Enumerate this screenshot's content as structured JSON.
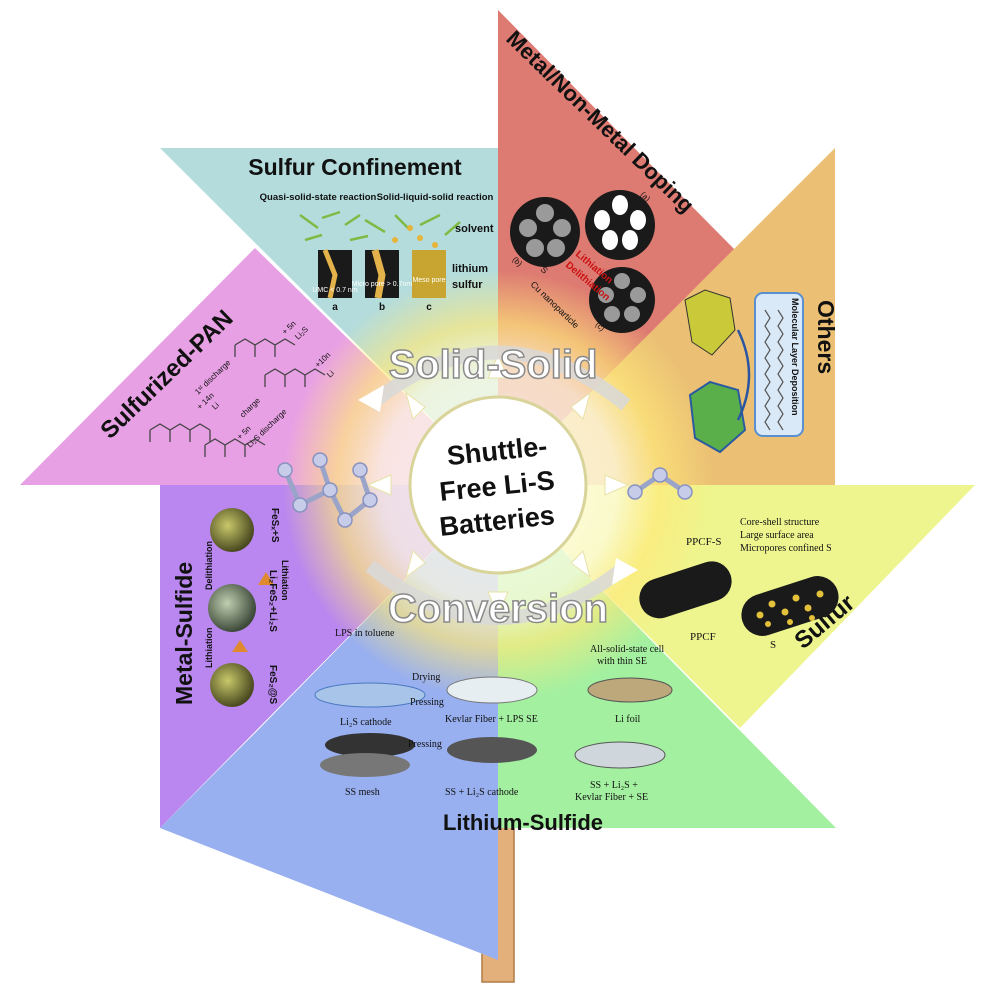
{
  "center": {
    "line1": "Shuttle-",
    "line2": "Free Li-S",
    "line3": "Batteries"
  },
  "arcs": {
    "top": "Solid-Solid",
    "bottom": "Conversion"
  },
  "blades": {
    "sulfur_confinement": {
      "title": "Sulfur Confinement",
      "quasi": "Quasi-solid-state reaction",
      "sls": "Solid-liquid-solid reaction",
      "solvent": "solvent",
      "lithium": "lithium",
      "sulfur": "sulfur",
      "pore_a": "UMC < 0.7 nm",
      "pore_b": "Micro pore > 0.7nm",
      "pore_c": "Meso pore",
      "label_a": "a",
      "label_b": "b",
      "label_c": "c"
    },
    "doping": {
      "title": "Metal/Non-Metal Doping",
      "lithiation": "Lithiation",
      "delithiation": "Delithiation",
      "s8": "S",
      "cu": "Cu nanoparticle",
      "label_a": "(a)",
      "label_b": "(b)",
      "label_c": "(c)"
    },
    "others": {
      "title": "Others",
      "mld": "Molecular Layer Deposition"
    },
    "sulfur": {
      "title": "Sulfur",
      "ppcfs": "PPCF-S",
      "f1": "Core-shell structure",
      "f2": "Large surface area",
      "f3": "Micropores confined S",
      "ppcf": "PPCF",
      "s": "S"
    },
    "lithium_sulfide": {
      "title": "Lithium-Sulfide",
      "lps": "LPS in toluene",
      "drying": "Drying",
      "pressing1": "Pressing",
      "li2s_cathode": "Li₂S cathode",
      "kevlar": "Kevlar Fiber + LPS SE",
      "allsolid1": "All-solid-state cell",
      "allsolid2": "with thin SE",
      "lifoil": "Li foil",
      "ssmesh": "SS mesh",
      "pressing2": "Pressing",
      "ss_cathode": "SS + Li₂S cathode",
      "ss_final1": "SS + Li₂S +",
      "ss_final2": "Kevlar Fiber + SE"
    },
    "metal_sulfide": {
      "title": "Metal-Sulfide",
      "fes": "FeSₓ+S",
      "delith": "Delithiation",
      "lith1": "Lithiation",
      "li2fes": "Li₂FeS₂+Li₂S",
      "lith2": "Lithiation",
      "fes2s": "FeS₂@S"
    },
    "span": {
      "title": "Sulfurized-PAN",
      "d1": "1ˢᵗ discharge",
      "c1": "charge",
      "d2": "Li₂S discharge",
      "p14": "+ 14n",
      "li1": "Li",
      "p5a": "+ 5n",
      "li2sa": "Li₂S",
      "p5b": "+ 5n",
      "p10": "+10n",
      "li2": "Li"
    }
  },
  "colors": {
    "teal": "#b4dcdc",
    "red": "#dd7a72",
    "orange": "#ebc074",
    "yellow": "#eef58e",
    "green": "#a3f0a0",
    "blue": "#98aff0",
    "purple": "#b987ef",
    "pink": "#e8a0e5",
    "stick": "#e3b07c"
  }
}
